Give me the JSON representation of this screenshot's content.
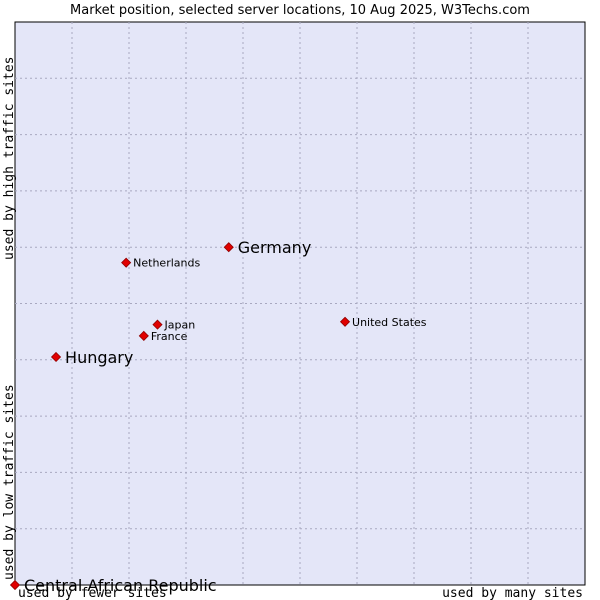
{
  "chart_data": {
    "type": "scatter",
    "title": "Market position, selected server locations, 10 Aug 2025, W3Techs.com",
    "xlabel_left": "used by fewer sites",
    "xlabel_right": "used by many sites",
    "ylabel_bottom": "used by low traffic sites",
    "ylabel_top": "used by high traffic sites",
    "grid": true,
    "colors": {
      "plot_bg": "#e4e6f8",
      "grid": "#a8a8c0",
      "point": "#e00000",
      "point_edge": "#900000"
    },
    "points": [
      {
        "name": "Germany",
        "x": 0.375,
        "y": 0.6,
        "emphasis": true
      },
      {
        "name": "Netherlands",
        "x": 0.195,
        "y": 0.5725,
        "emphasis": false
      },
      {
        "name": "United States",
        "x": 0.579,
        "y": 0.4675,
        "emphasis": false
      },
      {
        "name": "Japan",
        "x": 0.25,
        "y": 0.4625,
        "emphasis": false
      },
      {
        "name": "France",
        "x": 0.226,
        "y": 0.4425,
        "emphasis": false
      },
      {
        "name": "Hungary",
        "x": 0.072,
        "y": 0.405,
        "emphasis": true
      },
      {
        "name": "Central African Republic",
        "x": 0.0,
        "y": 0.0,
        "emphasis": true
      }
    ]
  }
}
